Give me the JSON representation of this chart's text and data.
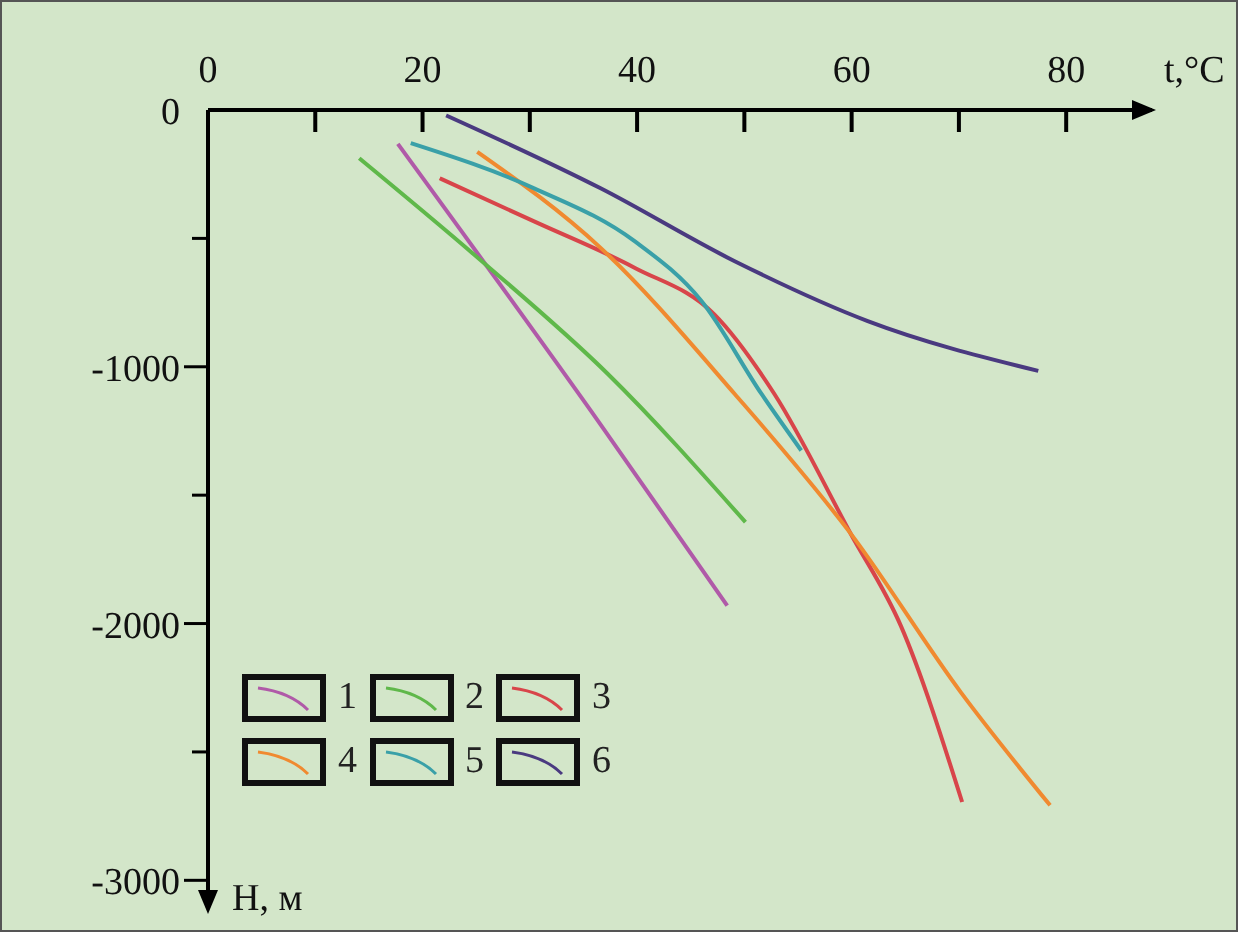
{
  "chart_data": {
    "type": "line",
    "xlabel": "t,°C",
    "ylabel": "H, м",
    "xlim": [
      0,
      88
    ],
    "ylim": [
      -3100,
      0
    ],
    "xticks": [
      0,
      {
        "value": 10,
        "label": null
      },
      20,
      {
        "value": 30,
        "label": null
      },
      40,
      {
        "value": 50,
        "label": null
      },
      60,
      {
        "value": 70,
        "label": null
      },
      80
    ],
    "yticks": [
      0,
      {
        "value": -500,
        "label": null
      },
      -1000,
      {
        "value": -1500,
        "label": null
      },
      -2000,
      {
        "value": -2500,
        "label": null
      },
      -3000
    ],
    "legend": "bottom left",
    "series": [
      {
        "name": "1",
        "color": "#b05aa8",
        "x": [
          17.7,
          36.6,
          48.4
        ],
        "values": [
          -132,
          -1225,
          -1930
        ]
      },
      {
        "name": "2",
        "color": "#5fb84a",
        "x": [
          14.1,
          24.8,
          37.3,
          50.1
        ],
        "values": [
          -188,
          -563,
          -1029,
          -1605
        ]
      },
      {
        "name": "3",
        "color": "#d8454a",
        "x": [
          21.6,
          30.4,
          39.8,
          47.2,
          52.8,
          59.9,
          64.6,
          70.3
        ],
        "values": [
          -266,
          -434,
          -615,
          -796,
          -1106,
          -1649,
          -2010,
          -2695
        ]
      },
      {
        "name": "4",
        "color": "#f08a30",
        "x": [
          25.1,
          36.6,
          49.1,
          59.9,
          70.2,
          78.5
        ],
        "values": [
          -163,
          -537,
          -1106,
          -1649,
          -2269,
          -2708
        ]
      },
      {
        "name": "5",
        "color": "#3aa0a8",
        "x": [
          18.9,
          30.4,
          39.8,
          46,
          51.6,
          55.3
        ],
        "values": [
          -129,
          -305,
          -512,
          -744,
          -1106,
          -1326
        ]
      },
      {
        "name": "6",
        "color": "#4a3a80",
        "x": [
          22.2,
          36.6,
          49.1,
          61.5,
          77.4
        ],
        "values": [
          -21,
          -305,
          -589,
          -822,
          -1016
        ]
      }
    ]
  }
}
